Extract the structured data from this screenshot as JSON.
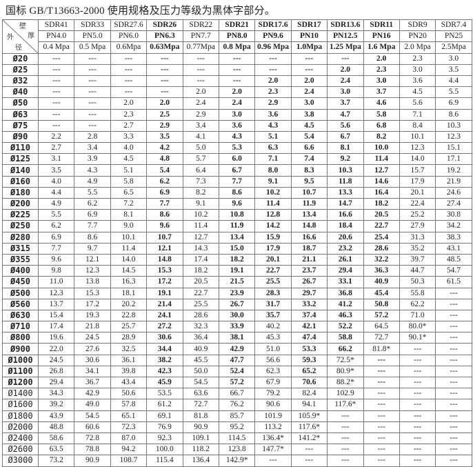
{
  "title": "国标 GB/T13663-2000 使用规格及压力等级为黑体字部分。",
  "corner": {
    "wall": "壁",
    "thick": "厚",
    "outer": "外",
    "diameter": "径"
  },
  "columns": [
    {
      "sdr": "SDR41",
      "pn": "PN4.0",
      "mpa": "0.4 Mpa",
      "bold": false
    },
    {
      "sdr": "SDR33",
      "pn": "PN5.0",
      "mpa": "0.5 Mpa",
      "bold": false
    },
    {
      "sdr": "SDR27.6",
      "pn": "PN6.0",
      "mpa": "0.6Mpa",
      "bold": false
    },
    {
      "sdr": "SDR26",
      "pn": "PN6.3",
      "mpa": "0.63Mpa",
      "bold": true
    },
    {
      "sdr": "SDR22",
      "pn": "PN7.7",
      "mpa": "0.77Mpa",
      "bold": false
    },
    {
      "sdr": "SDR21",
      "pn": "PN8.0",
      "mpa": "0.8 Mpa",
      "bold": true
    },
    {
      "sdr": "SDR17.6",
      "pn": "PN9.6",
      "mpa": "0.96 Mpa",
      "bold": true
    },
    {
      "sdr": "SDR17",
      "pn": "PN10",
      "mpa": "1.0Mpa",
      "bold": true
    },
    {
      "sdr": "SDR13.6",
      "pn": "PN12.5",
      "mpa": "1.25 Mpa",
      "bold": true
    },
    {
      "sdr": "SDR11",
      "pn": "PN16",
      "mpa": "1.6 Mpa",
      "bold": true
    },
    {
      "sdr": "SDR9",
      "pn": "PN20",
      "mpa": "2.0 Mpa",
      "bold": false
    },
    {
      "sdr": "SDR7.4",
      "pn": "PN25",
      "mpa": "2.5Mpa",
      "bold": false
    }
  ],
  "rows": [
    {
      "d": "Ø20",
      "v": [
        "---",
        "---",
        "---",
        "---",
        "---",
        "---",
        "---",
        "---",
        "---",
        "2.0",
        "2.3",
        "3.0"
      ]
    },
    {
      "d": "Ø25",
      "v": [
        "---",
        "---",
        "---",
        "---",
        "---",
        "---",
        "---",
        "---",
        "2.0",
        "2.3",
        "3.0",
        "3.5"
      ]
    },
    {
      "d": "Ø32",
      "v": [
        "---",
        "---",
        "---",
        "---",
        "---",
        "---",
        "2.0",
        "2.0",
        "2.4",
        "3.0",
        "3.6",
        "4.4"
      ]
    },
    {
      "d": "Ø40",
      "v": [
        "---",
        "---",
        "---",
        "---",
        "2.0",
        "2.0",
        "2.3",
        "2.4",
        "3.0",
        "3.7",
        "4.5",
        "5.5"
      ]
    },
    {
      "d": "Ø50",
      "v": [
        "---",
        "---",
        "2.0",
        "2.0",
        "2.4",
        "2.4",
        "2.9",
        "3.0",
        "3.7",
        "4.6",
        "5.6",
        "6.9"
      ]
    },
    {
      "d": "Ø63",
      "v": [
        "---",
        "---",
        "2.3",
        "2.5",
        "2.9",
        "3.0",
        "3.6",
        "3.8",
        "4.7",
        "5.8",
        "7.1",
        "8.6"
      ]
    },
    {
      "d": "Ø75",
      "v": [
        "---",
        "---",
        "2.7",
        "2.9",
        "3.4",
        "3.6",
        "4.3",
        "4.5",
        "5.6",
        "6.8",
        "8.4",
        "10.3"
      ]
    },
    {
      "d": "Ø90",
      "v": [
        "2.2",
        "2.8",
        "3.3",
        "3.5",
        "4.1",
        "4.3",
        "5.1",
        "5.4",
        "6.7",
        "8.2",
        "10.1",
        "12.3"
      ]
    },
    {
      "d": "Ø110",
      "v": [
        "2.7",
        "3.4",
        "4.0",
        "4.2",
        "5.0",
        "5.3",
        "6.3",
        "6.6",
        "8.1",
        "10.0",
        "12.3",
        "15.1"
      ]
    },
    {
      "d": "Ø125",
      "v": [
        "3.1",
        "3.9",
        "4.5",
        "4.8",
        "5.7",
        "6.0",
        "7.1",
        "7.4",
        "9.2",
        "11.4",
        "14.0",
        "17.1"
      ]
    },
    {
      "d": "Ø140",
      "v": [
        "3.5",
        "4.3",
        "5.1",
        "5.4",
        "6.4",
        "6.7",
        "8.0",
        "8.3",
        "10.3",
        "12.7",
        "15.7",
        "19.2"
      ]
    },
    {
      "d": "Ø160",
      "v": [
        "4.0",
        "4.9",
        "5.8",
        "6.2",
        "7.3",
        "7.7",
        "9.1",
        "9.5",
        "11.8",
        "14.6",
        "17.9",
        "21.9"
      ]
    },
    {
      "d": "Ø180",
      "v": [
        "4.4",
        "5.5",
        "6.5",
        "6.9",
        "8.2",
        "8.6",
        "10.2",
        "10.7",
        "13.3",
        "16.4",
        "20.1",
        "24.6"
      ]
    },
    {
      "d": "Ø200",
      "v": [
        "4.9",
        "6.2",
        "7.2",
        "7.7",
        "9.1",
        "9.6",
        "11.4",
        "11.9",
        "14.7",
        "18.2",
        "22.4",
        "27.4"
      ]
    },
    {
      "d": "Ø225",
      "v": [
        "5.5",
        "6.9",
        "8.1",
        "8.6",
        "10.2",
        "10.8",
        "12.8",
        "13.4",
        "16.6",
        "20.5",
        "25.2",
        "30.8"
      ]
    },
    {
      "d": "Ø250",
      "v": [
        "6.2",
        "7.7",
        "9.0",
        "9.6",
        "11.4",
        "11.9",
        "14.2",
        "14.8",
        "18.4",
        "22.7",
        "27.9",
        "34.2"
      ]
    },
    {
      "d": "Ø280",
      "v": [
        "6.9",
        "8.6",
        "10.1",
        "10.7",
        "12.7",
        "13.4",
        "15.9",
        "16.6",
        "20.6",
        "25.4",
        "31.3",
        "38.3"
      ]
    },
    {
      "d": "Ø315",
      "v": [
        "7.7",
        "9.7",
        "11.4",
        "12.1",
        "14.3",
        "15.0",
        "17.9",
        "18.7",
        "23.2",
        "28.6",
        "35.2",
        "43.1"
      ]
    },
    {
      "d": "Ø355",
      "v": [
        "9.6",
        "12.1",
        "14.0",
        "14.8",
        "17.4",
        "18.2",
        "20.1",
        "21.1",
        "26.1",
        "32.2",
        "39.7",
        "48.5"
      ]
    },
    {
      "d": "Ø400",
      "v": [
        "9.8",
        "12.3",
        "14.5",
        "15.3",
        "18.2",
        "19.1",
        "22.7",
        "23.7",
        "29.4",
        "36.3",
        "44.7",
        "54.7"
      ]
    },
    {
      "d": "Ø450",
      "v": [
        "11.0",
        "13.8",
        "16.3",
        "17.2",
        "20.5",
        "21.5",
        "25.5",
        "26.7",
        "33.1",
        "40.9",
        "50.3",
        "61.5"
      ]
    },
    {
      "d": "Ø500",
      "v": [
        "12.3",
        "15.3",
        "18.1",
        "19.1",
        "22.7",
        "23.9",
        "28.3",
        "29.7",
        "36.8",
        "45.4",
        "55.8",
        "---"
      ]
    },
    {
      "d": "Ø560",
      "v": [
        "13.7",
        "17.2",
        "20.2",
        "21.4",
        "25.5",
        "26.7",
        "31.7",
        "33.2",
        "41.2",
        "50.8",
        "62.2",
        "---"
      ]
    },
    {
      "d": "Ø630",
      "v": [
        "15.4",
        "19.3",
        "22.8",
        "24.1",
        "28.6",
        "30.0",
        "35.7",
        "37.4",
        "46.3",
        "57.2",
        "71.0",
        "---"
      ]
    },
    {
      "d": "Ø710",
      "v": [
        "17.4",
        "21.8",
        "25.7",
        "27.2",
        "32.3",
        "33.9",
        "40.2",
        "42.1",
        "52.2",
        "64.5",
        "80.0*",
        "---"
      ]
    },
    {
      "d": "Ø800",
      "v": [
        "19.6",
        "24.5",
        "28.9",
        "30.6",
        "36.4",
        "38.1",
        "45.3",
        "47.4",
        "58.8",
        "72.7",
        "90.1*",
        "---"
      ]
    },
    {
      "d": "Ø900",
      "v": [
        "22.0",
        "27.6",
        "32.5",
        "34.4",
        "40.9",
        "42.9",
        "51.0",
        "53.3",
        "66.2",
        "81.8*",
        "---",
        "---"
      ]
    },
    {
      "d": "Ø1000",
      "v": [
        "24.5",
        "30.6",
        "36.1",
        "38.2",
        "45.5",
        "47.7",
        "56.6",
        "59.3",
        "72.5*",
        "---",
        "---",
        "---"
      ]
    },
    {
      "d": "Ø1100",
      "v": [
        "26.8",
        "34.1",
        "39.8",
        "42.3",
        "50.0",
        "52.4",
        "62.3",
        "65.2",
        "80.9*",
        "---",
        "---",
        "---"
      ]
    },
    {
      "d": "Ø1200",
      "v": [
        "29.4",
        "36.7",
        "43.4",
        "45.9",
        "54.5",
        "57.2",
        "67.9",
        "70.6",
        "88.2*",
        "---",
        "---",
        "---"
      ]
    },
    {
      "d": "Ø1400",
      "v": [
        "34.3",
        "42.9",
        "50.6",
        "53.5",
        "63.6",
        "66.7",
        "79.2",
        "82.4",
        "102.9",
        "---",
        "---",
        "---"
      ]
    },
    {
      "d": "Ø1600",
      "v": [
        "39.2",
        "49.0",
        "57.8",
        "61.2",
        "72.7",
        "76.2",
        "90.6",
        "94.1",
        "117.6*",
        "---",
        "---",
        "---"
      ]
    },
    {
      "d": "Ø1800",
      "v": [
        "43.9",
        "54.5",
        "65.1",
        "69.1",
        "81.8",
        "85.7",
        "101.9",
        "105.9*",
        "---",
        "---",
        "---",
        "---"
      ]
    },
    {
      "d": "Ø2000",
      "v": [
        "48.8",
        "60.6",
        "72.3",
        "76.9",
        "90.9",
        "95.2",
        "113.2",
        "117.6*",
        "---",
        "---",
        "---",
        "---"
      ]
    },
    {
      "d": "Ø2400",
      "v": [
        "58.6",
        "72.8",
        "87.0",
        "92.3",
        "109.1",
        "114.5",
        "136.4*",
        "141.2*",
        "---",
        "---",
        "---",
        "---"
      ]
    },
    {
      "d": "Ø2600",
      "v": [
        "63.5",
        "78.8",
        "94.2",
        "100.0",
        "118.2",
        "123.8",
        "147.7*",
        "---",
        "---",
        "---",
        "---",
        "---"
      ]
    },
    {
      "d": "Ø3000",
      "v": [
        "73.2",
        "90.9",
        "108.7",
        "115.4",
        "136.4",
        "142.9*",
        "---",
        "---",
        "---",
        "---",
        "---",
        "---"
      ]
    }
  ]
}
